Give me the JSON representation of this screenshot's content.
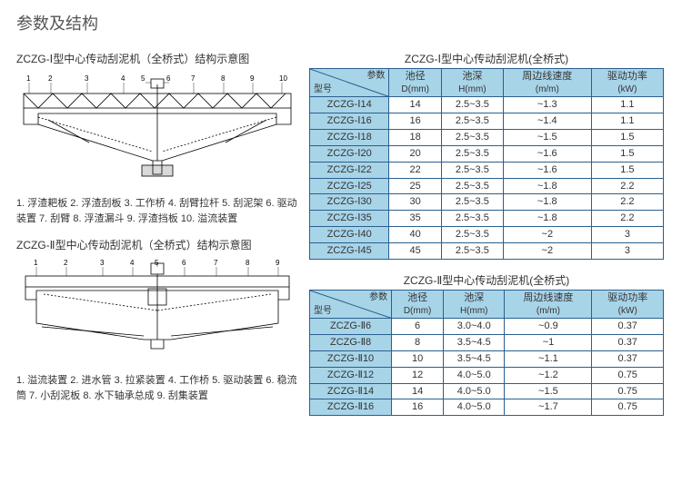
{
  "page_title": "参数及结构",
  "diagram1": {
    "title": "ZCZG-Ⅰ型中心传动刮泥机（全桥式）结构示意图",
    "numbers": [
      "1",
      "2",
      "3",
      "4",
      "5",
      "6",
      "7",
      "8",
      "9",
      "10"
    ],
    "legend": "1. 浮渣耙板  2. 浮渣刮板  3. 工作桥  4. 刮臂拉杆  5. 刮泥架  6. 驱动装置  7. 刮臂  8. 浮渣漏斗  9. 浮渣挡板  10. 溢流装置"
  },
  "diagram2": {
    "title": "ZCZG-Ⅱ型中心传动刮泥机（全桥式）结构示意图",
    "numbers": [
      "1",
      "2",
      "3",
      "4",
      "5",
      "6",
      "7",
      "8",
      "9"
    ],
    "legend": "1. 溢流装置  2. 进水管  3. 拉紧装置  4. 工作桥  5. 驱动装置  6. 稳流筒  7. 小刮泥板  8. 水下轴承总成  9. 刮集装置"
  },
  "table1": {
    "title": "ZCZG-Ⅰ型中心传动刮泥机(全桥式)",
    "corner_param": "参数",
    "corner_model": "型号",
    "cols": [
      {
        "l1": "池径",
        "l2": "D(mm)"
      },
      {
        "l1": "池深",
        "l2": "H(mm)"
      },
      {
        "l1": "周边线速度",
        "l2": "(m/m)"
      },
      {
        "l1": "驱动功率",
        "l2": "(kW)"
      }
    ],
    "rows": [
      [
        "ZCZG-Ⅰ14",
        "14",
        "2.5~3.5",
        "~1.3",
        "1.1"
      ],
      [
        "ZCZG-Ⅰ16",
        "16",
        "2.5~3.5",
        "~1.4",
        "1.1"
      ],
      [
        "ZCZG-Ⅰ18",
        "18",
        "2.5~3.5",
        "~1.5",
        "1.5"
      ],
      [
        "ZCZG-Ⅰ20",
        "20",
        "2.5~3.5",
        "~1.6",
        "1.5"
      ],
      [
        "ZCZG-Ⅰ22",
        "22",
        "2.5~3.5",
        "~1.6",
        "1.5"
      ],
      [
        "ZCZG-Ⅰ25",
        "25",
        "2.5~3.5",
        "~1.8",
        "2.2"
      ],
      [
        "ZCZG-Ⅰ30",
        "30",
        "2.5~3.5",
        "~1.8",
        "2.2"
      ],
      [
        "ZCZG-Ⅰ35",
        "35",
        "2.5~3.5",
        "~1.8",
        "2.2"
      ],
      [
        "ZCZG-Ⅰ40",
        "40",
        "2.5~3.5",
        "~2",
        "3"
      ],
      [
        "ZCZG-Ⅰ45",
        "45",
        "2.5~3.5",
        "~2",
        "3"
      ]
    ]
  },
  "table2": {
    "title": "ZCZG-Ⅱ型中心传动刮泥机(全桥式)",
    "corner_param": "参数",
    "corner_model": "型号",
    "cols": [
      {
        "l1": "池径",
        "l2": "D(mm)"
      },
      {
        "l1": "池深",
        "l2": "H(mm)"
      },
      {
        "l1": "周边线速度",
        "l2": "(m/m)"
      },
      {
        "l1": "驱动功率",
        "l2": "(kW)"
      }
    ],
    "rows": [
      [
        "ZCZG-Ⅱ6",
        "6",
        "3.0~4.0",
        "~0.9",
        "0.37"
      ],
      [
        "ZCZG-Ⅱ8",
        "8",
        "3.5~4.5",
        "~1",
        "0.37"
      ],
      [
        "ZCZG-Ⅱ10",
        "10",
        "3.5~4.5",
        "~1.1",
        "0.37"
      ],
      [
        "ZCZG-Ⅱ12",
        "12",
        "4.0~5.0",
        "~1.2",
        "0.75"
      ],
      [
        "ZCZG-Ⅱ14",
        "14",
        "4.0~5.0",
        "~1.5",
        "0.75"
      ],
      [
        "ZCZG-Ⅱ16",
        "16",
        "4.0~5.0",
        "~1.7",
        "0.75"
      ]
    ]
  },
  "colors": {
    "border": "#2a5f8f",
    "header_bg": "#a8d4e8",
    "text": "#333"
  }
}
